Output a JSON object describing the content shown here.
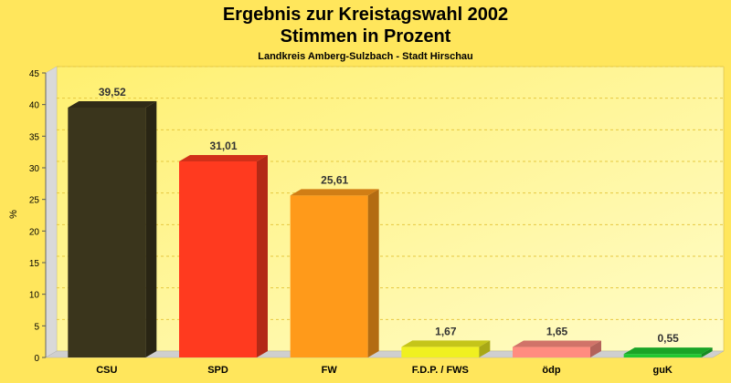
{
  "chart_data": {
    "type": "bar",
    "title_line1": "Ergebnis zur Kreistagswahl 2002",
    "title_line2": "Stimmen in Prozent",
    "subtitle": "Landkreis Amberg-Sulzbach - Stadt Hirschau",
    "ylabel": "%",
    "xlabel": "",
    "ylim": [
      0,
      45
    ],
    "yticks": [
      0,
      5,
      10,
      15,
      20,
      25,
      30,
      35,
      40,
      45
    ],
    "grid": true,
    "categories": [
      "CSU",
      "SPD",
      "FW",
      "F.D.P. / FWS",
      "ödp",
      "guK"
    ],
    "values": [
      39.52,
      31.01,
      25.61,
      1.67,
      1.65,
      0.55
    ],
    "value_labels": [
      "39,52",
      "31,01",
      "25,61",
      "1,67",
      "1,65",
      "0,55"
    ],
    "colors": [
      "#3a351c",
      "#ff3a1f",
      "#ff9a1a",
      "#f0f020",
      "#ff8c80",
      "#20c830"
    ]
  }
}
